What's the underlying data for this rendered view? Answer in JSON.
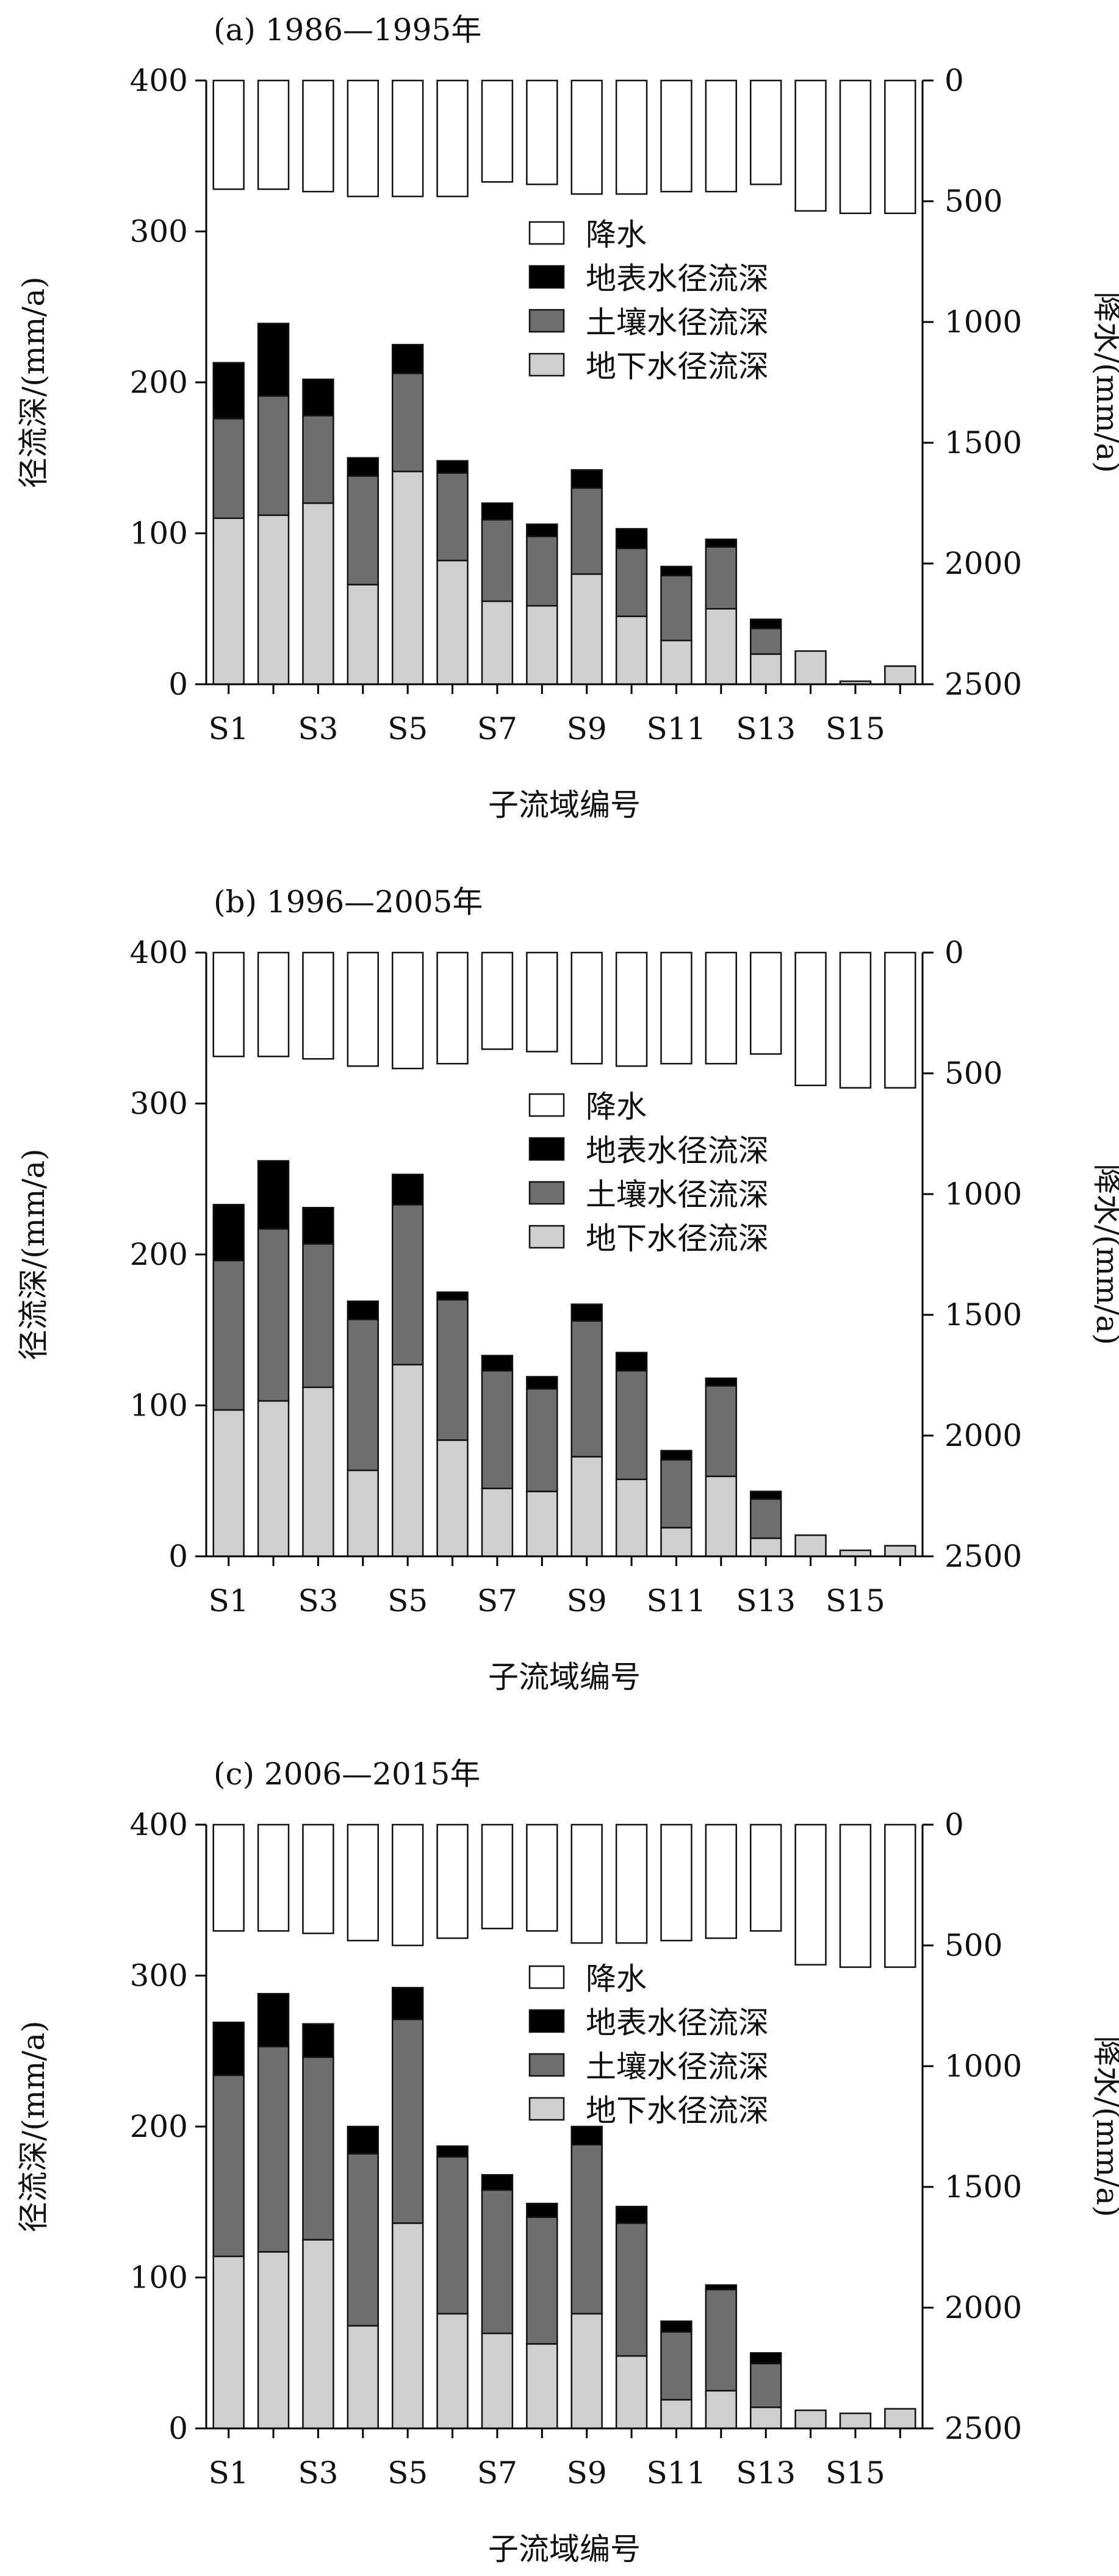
{
  "figure": {
    "shared": {
      "y_left_label": "径流深/(mm/a)",
      "y_right_label": "降水/(mm/a)",
      "x_label": "子流域编号",
      "y_left_ticks": [
        "0",
        "100",
        "200",
        "300",
        "400"
      ],
      "y_right_ticks": [
        "0",
        "500",
        "1000",
        "1500",
        "2000",
        "2500"
      ],
      "legend": [
        "降水",
        "地表水径流深",
        "土壤水径流深",
        "地下水径流深"
      ],
      "colors": {
        "precip": "#ffffff",
        "surface": "#000000",
        "soil": "#6e6e6e",
        "ground": "#cfcfcf",
        "stroke": "#111111"
      }
    }
  },
  "chart_data": [
    {
      "type": "bar",
      "title": "(a) 1986—1995年",
      "categories": [
        "S1",
        "S2",
        "S3",
        "S4",
        "S5",
        "S6",
        "S7",
        "S8",
        "S9",
        "S10",
        "S11",
        "S12",
        "S13",
        "S14",
        "S15",
        "S16"
      ],
      "xtick_labels": [
        "S1",
        "S3",
        "S5",
        "S7",
        "S9",
        "S11",
        "S13",
        "S15"
      ],
      "ylim": [
        0,
        400
      ],
      "y2lim": [
        0,
        2500
      ],
      "y2_inverted": true,
      "series": [
        {
          "name": "地下水径流深",
          "values": [
            110,
            112,
            120,
            66,
            141,
            82,
            55,
            52,
            73,
            45,
            29,
            50,
            20,
            22,
            2,
            12
          ]
        },
        {
          "name": "土壤水径流深",
          "values": [
            66,
            79,
            58,
            72,
            65,
            58,
            54,
            46,
            57,
            45,
            43,
            41,
            17,
            0,
            0,
            0
          ]
        },
        {
          "name": "地表水径流深",
          "values": [
            37,
            48,
            24,
            12,
            19,
            8,
            11,
            8,
            12,
            13,
            6,
            5,
            6,
            0,
            0,
            0
          ]
        },
        {
          "name": "降水",
          "axis": "right",
          "values": [
            450,
            450,
            460,
            480,
            480,
            480,
            420,
            430,
            470,
            470,
            460,
            460,
            430,
            540,
            550,
            550
          ]
        }
      ]
    },
    {
      "type": "bar",
      "title": "(b) 1996—2005年",
      "categories": [
        "S1",
        "S2",
        "S3",
        "S4",
        "S5",
        "S6",
        "S7",
        "S8",
        "S9",
        "S10",
        "S11",
        "S12",
        "S13",
        "S14",
        "S15",
        "S16"
      ],
      "xtick_labels": [
        "S1",
        "S3",
        "S5",
        "S7",
        "S9",
        "S11",
        "S13",
        "S15"
      ],
      "ylim": [
        0,
        400
      ],
      "y2lim": [
        0,
        2500
      ],
      "y2_inverted": true,
      "series": [
        {
          "name": "地下水径流深",
          "values": [
            97,
            103,
            112,
            57,
            127,
            77,
            45,
            43,
            66,
            51,
            19,
            53,
            12,
            14,
            4,
            7
          ]
        },
        {
          "name": "土壤水径流深",
          "values": [
            99,
            114,
            95,
            100,
            106,
            93,
            78,
            68,
            90,
            72,
            45,
            60,
            26,
            0,
            0,
            0
          ]
        },
        {
          "name": "地表水径流深",
          "values": [
            37,
            45,
            24,
            12,
            20,
            5,
            10,
            8,
            11,
            12,
            6,
            5,
            5,
            0,
            0,
            0
          ]
        },
        {
          "name": "降水",
          "axis": "right",
          "values": [
            430,
            430,
            440,
            470,
            480,
            460,
            400,
            410,
            460,
            470,
            460,
            460,
            420,
            550,
            560,
            560
          ]
        }
      ]
    },
    {
      "type": "bar",
      "title": "(c) 2006—2015年",
      "categories": [
        "S1",
        "S2",
        "S3",
        "S4",
        "S5",
        "S6",
        "S7",
        "S8",
        "S9",
        "S10",
        "S11",
        "S12",
        "S13",
        "S14",
        "S15",
        "S16"
      ],
      "xtick_labels": [
        "S1",
        "S3",
        "S5",
        "S7",
        "S9",
        "S11",
        "S13",
        "S15"
      ],
      "ylim": [
        0,
        400
      ],
      "y2lim": [
        0,
        2500
      ],
      "y2_inverted": true,
      "series": [
        {
          "name": "地下水径流深",
          "values": [
            114,
            117,
            125,
            68,
            136,
            76,
            63,
            56,
            76,
            48,
            19,
            25,
            14,
            12,
            10,
            13
          ]
        },
        {
          "name": "土壤水径流深",
          "values": [
            120,
            136,
            121,
            114,
            135,
            104,
            95,
            84,
            112,
            88,
            45,
            67,
            29,
            0,
            0,
            0
          ]
        },
        {
          "name": "地表水径流深",
          "values": [
            35,
            35,
            22,
            18,
            21,
            7,
            10,
            9,
            12,
            11,
            7,
            3,
            7,
            0,
            0,
            0
          ]
        },
        {
          "name": "降水",
          "axis": "right",
          "values": [
            440,
            440,
            450,
            480,
            500,
            470,
            430,
            440,
            490,
            490,
            480,
            470,
            440,
            580,
            590,
            590
          ]
        }
      ]
    }
  ]
}
